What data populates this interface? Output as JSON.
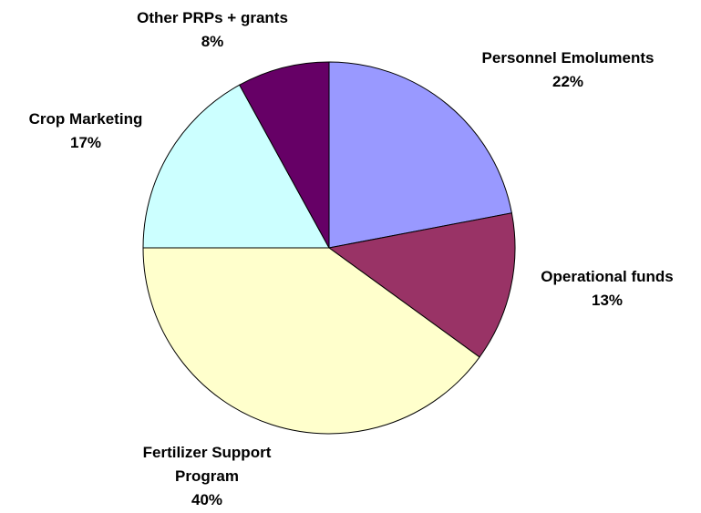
{
  "chart_data": {
    "type": "pie",
    "categories": [
      "Personnel Emoluments",
      "Operational funds",
      "Fertilizer Support Program",
      "Crop Marketing",
      "Other PRPs + grants"
    ],
    "values": [
      22,
      13,
      40,
      17,
      8
    ],
    "value_labels": [
      "22%",
      "13%",
      "40%",
      "17%",
      "8%"
    ],
    "colors": [
      "#9999ff",
      "#993366",
      "#ffffcc",
      "#ccffff",
      "#660066"
    ]
  }
}
